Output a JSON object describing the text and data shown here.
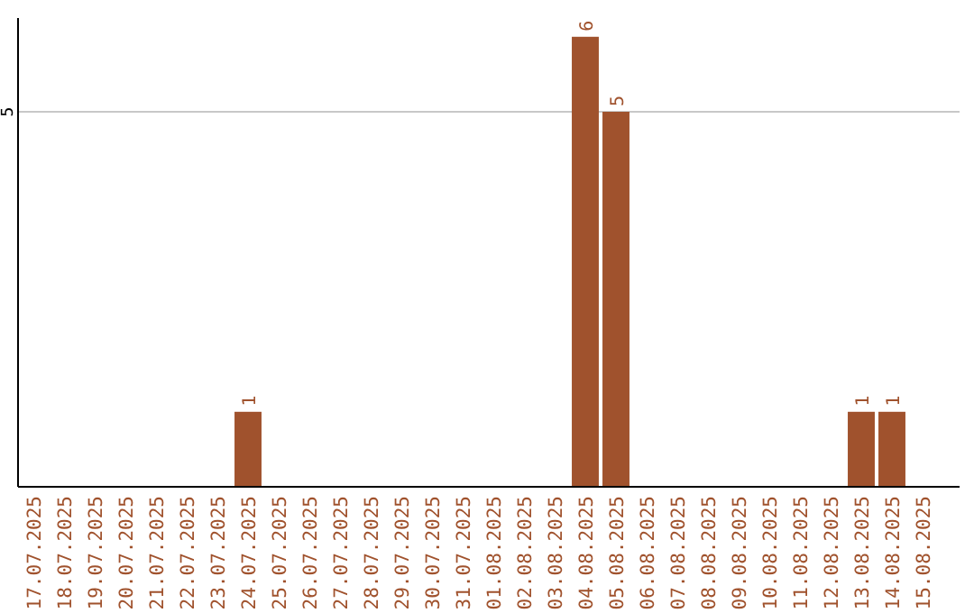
{
  "chart_data": {
    "type": "bar",
    "categories": [
      "17.07.2025",
      "18.07.2025",
      "19.07.2025",
      "20.07.2025",
      "21.07.2025",
      "22.07.2025",
      "23.07.2025",
      "24.07.2025",
      "25.07.2025",
      "26.07.2025",
      "27.07.2025",
      "28.07.2025",
      "29.07.2025",
      "30.07.2025",
      "31.07.2025",
      "01.08.2025",
      "02.08.2025",
      "03.08.2025",
      "04.08.2025",
      "05.08.2025",
      "06.08.2025",
      "07.08.2025",
      "08.08.2025",
      "09.08.2025",
      "10.08.2025",
      "11.08.2025",
      "12.08.2025",
      "13.08.2025",
      "14.08.2025",
      "15.08.2025"
    ],
    "values": [
      0,
      0,
      0,
      0,
      0,
      0,
      0,
      1,
      0,
      0,
      0,
      0,
      0,
      0,
      0,
      0,
      0,
      0,
      6,
      5,
      0,
      0,
      0,
      0,
      0,
      0,
      0,
      1,
      1,
      0
    ],
    "value_labels": [
      null,
      null,
      null,
      null,
      null,
      null,
      null,
      "1",
      null,
      null,
      null,
      null,
      null,
      null,
      null,
      null,
      null,
      null,
      "6",
      "5",
      null,
      null,
      null,
      null,
      null,
      null,
      null,
      "1",
      "1",
      null
    ],
    "color": "#a0522d",
    "ylim": [
      0,
      6.25
    ],
    "yticks": [
      5
    ],
    "grid": "y"
  }
}
